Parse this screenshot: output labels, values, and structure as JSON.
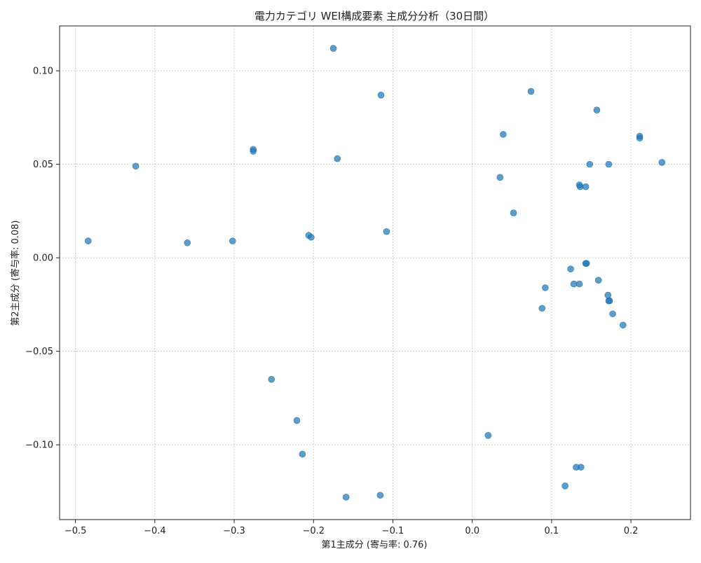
{
  "chart_data": {
    "type": "scatter",
    "title": "電力カテゴリ WEI構成要素 主成分分析（30日間）",
    "xlabel": "第1主成分 (寄与率: 0.76)",
    "ylabel": "第2主成分 (寄与率: 0.08)",
    "xlim": [
      -0.52,
      0.275
    ],
    "ylim": [
      -0.14,
      0.124
    ],
    "grid": true,
    "point_color": "#1f77b4",
    "x_ticks": [
      -0.5,
      -0.4,
      -0.3,
      -0.2,
      -0.1,
      0.0,
      0.1,
      0.2
    ],
    "x_tick_labels": [
      "−0.5",
      "−0.4",
      "−0.3",
      "−0.2",
      "−0.1",
      "0.0",
      "0.1",
      "0.2"
    ],
    "y_ticks": [
      -0.1,
      -0.05,
      0.0,
      0.05,
      0.1
    ],
    "y_tick_labels": [
      "−0.10",
      "−0.05",
      "0.00",
      "0.05",
      "0.10"
    ],
    "points": [
      {
        "x": -0.175,
        "y": 0.112
      },
      {
        "x": -0.115,
        "y": 0.087
      },
      {
        "x": 0.074,
        "y": 0.089
      },
      {
        "x": 0.157,
        "y": 0.079
      },
      {
        "x": 0.039,
        "y": 0.066
      },
      {
        "x": 0.211,
        "y": 0.064
      },
      {
        "x": 0.211,
        "y": 0.065
      },
      {
        "x": -0.276,
        "y": 0.058
      },
      {
        "x": -0.276,
        "y": 0.057
      },
      {
        "x": -0.424,
        "y": 0.049
      },
      {
        "x": -0.17,
        "y": 0.053
      },
      {
        "x": 0.148,
        "y": 0.05
      },
      {
        "x": 0.172,
        "y": 0.05
      },
      {
        "x": 0.239,
        "y": 0.051
      },
      {
        "x": 0.035,
        "y": 0.043
      },
      {
        "x": 0.135,
        "y": 0.039
      },
      {
        "x": 0.136,
        "y": 0.038
      },
      {
        "x": 0.143,
        "y": 0.038
      },
      {
        "x": 0.052,
        "y": 0.024
      },
      {
        "x": -0.108,
        "y": 0.014
      },
      {
        "x": -0.206,
        "y": 0.012
      },
      {
        "x": -0.203,
        "y": 0.011
      },
      {
        "x": -0.484,
        "y": 0.009
      },
      {
        "x": -0.359,
        "y": 0.008
      },
      {
        "x": -0.302,
        "y": 0.009
      },
      {
        "x": 0.143,
        "y": -0.003
      },
      {
        "x": 0.144,
        "y": -0.003
      },
      {
        "x": 0.124,
        "y": -0.006
      },
      {
        "x": 0.159,
        "y": -0.012
      },
      {
        "x": 0.128,
        "y": -0.014
      },
      {
        "x": 0.135,
        "y": -0.014
      },
      {
        "x": 0.092,
        "y": -0.016
      },
      {
        "x": 0.171,
        "y": -0.02
      },
      {
        "x": 0.172,
        "y": -0.023
      },
      {
        "x": 0.173,
        "y": -0.023
      },
      {
        "x": 0.088,
        "y": -0.027
      },
      {
        "x": 0.177,
        "y": -0.03
      },
      {
        "x": 0.19,
        "y": -0.036
      },
      {
        "x": -0.253,
        "y": -0.065
      },
      {
        "x": -0.221,
        "y": -0.087
      },
      {
        "x": 0.02,
        "y": -0.095
      },
      {
        "x": -0.214,
        "y": -0.105
      },
      {
        "x": 0.131,
        "y": -0.112
      },
      {
        "x": 0.137,
        "y": -0.112
      },
      {
        "x": 0.117,
        "y": -0.122
      },
      {
        "x": -0.159,
        "y": -0.128
      },
      {
        "x": -0.116,
        "y": -0.127
      }
    ]
  }
}
